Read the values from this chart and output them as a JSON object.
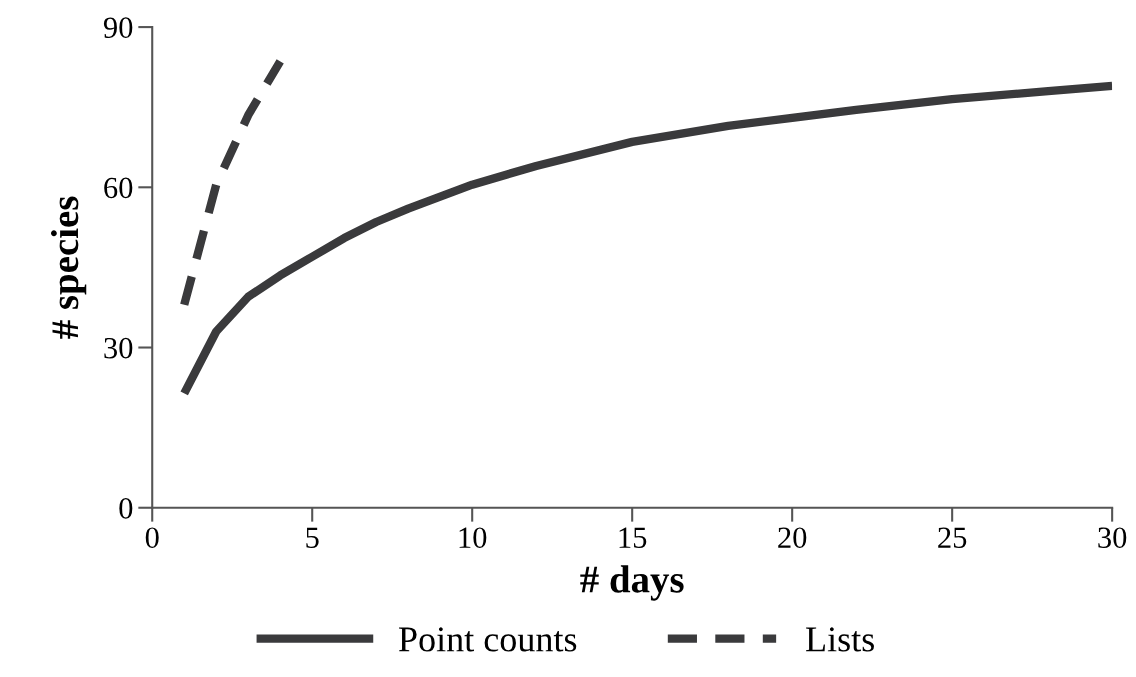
{
  "chart_data": {
    "type": "line",
    "xlabel": "# days",
    "ylabel": "# species",
    "xlim": [
      0,
      30
    ],
    "xticks": [
      0,
      5,
      10,
      15,
      20,
      25,
      30
    ],
    "ylim": [
      0,
      90
    ],
    "yticks": [
      0,
      30,
      60,
      90
    ],
    "grid": false,
    "legend": "bottom",
    "marker": "none",
    "series": [
      {
        "name": "Point counts",
        "color": "#3a3a3c",
        "line_style": "solid",
        "x": [
          1,
          2,
          3,
          4,
          5,
          6,
          7,
          8,
          10,
          12,
          15,
          18,
          20,
          22,
          25,
          28,
          30
        ],
        "values": [
          21.4,
          33,
          39.5,
          43.5,
          47,
          50.5,
          53.5,
          56,
          60.5,
          64,
          68.5,
          71.5,
          73,
          74.5,
          76.5,
          78,
          79
        ]
      },
      {
        "name": "Lists",
        "color": "#3a3a3c",
        "line_style": "dashed",
        "x": [
          1,
          2,
          3,
          4
        ],
        "values": [
          38,
          60.5,
          73.5,
          83.6
        ]
      }
    ]
  }
}
